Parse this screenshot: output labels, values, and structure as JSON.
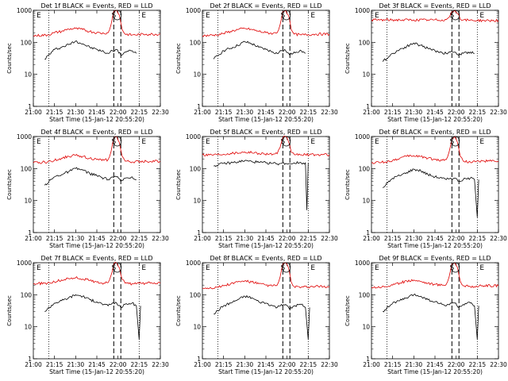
{
  "figure": {
    "background": "#ffffff",
    "axis_color": "#000000",
    "events_color": "#000000",
    "lld_color": "#e00000"
  },
  "shared": {
    "xlabel": "Start Time (15-Jan-12 20:55:20)",
    "ylabel": "Counts/sec",
    "x_tick_labels": [
      "21:00",
      "21:15",
      "21:30",
      "21:45",
      "22:00",
      "22:15",
      "22:30"
    ],
    "y_tick_labels": [
      "1",
      "10",
      "100",
      "1000"
    ],
    "marker_labels": [
      "E",
      "S",
      "E"
    ]
  },
  "chart_data": [
    {
      "type": "line",
      "title": "Det 1f BLACK = Events, RED = LLD",
      "xlim": [
        "21:00",
        "22:30"
      ],
      "ylim": [
        1,
        1000
      ],
      "yscale": "log",
      "grid": false,
      "dotted_lines_x": [
        "21:11",
        "22:15"
      ],
      "dashed_lines_x": [
        "21:57",
        "22:02"
      ],
      "series": [
        {
          "name": "Events",
          "x": [
            "21:08",
            "21:15",
            "21:20",
            "21:25",
            "21:30",
            "21:35",
            "21:40",
            "21:45",
            "21:50",
            "21:53",
            "21:56",
            "21:59",
            "22:02",
            "22:05",
            "22:10",
            "22:13"
          ],
          "y": [
            30,
            60,
            70,
            85,
            110,
            90,
            70,
            60,
            50,
            45,
            55,
            60,
            40,
            50,
            55,
            45
          ]
        },
        {
          "name": "LLD",
          "x": [
            "21:00",
            "21:10",
            "21:15",
            "21:20",
            "21:25",
            "21:30",
            "21:35",
            "21:40",
            "21:45",
            "21:50",
            "21:53",
            "21:55",
            "21:57",
            "21:59",
            "22:01",
            "22:03",
            "22:05",
            "22:10",
            "22:20",
            "22:30"
          ],
          "y": [
            160,
            170,
            200,
            220,
            260,
            270,
            250,
            220,
            200,
            190,
            200,
            350,
            900,
            1000,
            700,
            250,
            180,
            170,
            180,
            180
          ]
        }
      ]
    },
    {
      "type": "line",
      "title": "Det 2f BLACK = Events, RED = LLD",
      "xlim": [
        "21:00",
        "22:30"
      ],
      "ylim": [
        1,
        1000
      ],
      "yscale": "log",
      "grid": false,
      "dotted_lines_x": [
        "21:11",
        "22:15"
      ],
      "dashed_lines_x": [
        "21:57",
        "22:02"
      ],
      "series": [
        {
          "name": "Events",
          "x": [
            "21:08",
            "21:15",
            "21:20",
            "21:25",
            "21:30",
            "21:35",
            "21:40",
            "21:45",
            "21:50",
            "21:53",
            "21:56",
            "21:59",
            "22:02",
            "22:05",
            "22:10",
            "22:13"
          ],
          "y": [
            30,
            55,
            65,
            80,
            105,
            90,
            70,
            60,
            50,
            45,
            55,
            55,
            40,
            50,
            55,
            45
          ]
        },
        {
          "name": "LLD",
          "x": [
            "21:00",
            "21:10",
            "21:15",
            "21:20",
            "21:25",
            "21:30",
            "21:35",
            "21:40",
            "21:45",
            "21:50",
            "21:53",
            "21:55",
            "21:57",
            "21:59",
            "22:01",
            "22:03",
            "22:05",
            "22:10",
            "22:20",
            "22:30"
          ],
          "y": [
            160,
            170,
            190,
            220,
            250,
            270,
            250,
            220,
            200,
            190,
            200,
            350,
            900,
            1000,
            700,
            250,
            180,
            170,
            180,
            180
          ]
        }
      ]
    },
    {
      "type": "line",
      "title": "Det 3f BLACK = Events, RED = LLD",
      "xlim": [
        "21:00",
        "22:30"
      ],
      "ylim": [
        1,
        1000
      ],
      "yscale": "log",
      "grid": false,
      "dotted_lines_x": [
        "21:11",
        "22:15"
      ],
      "dashed_lines_x": [
        "21:57",
        "22:02"
      ],
      "series": [
        {
          "name": "Events",
          "x": [
            "21:08",
            "21:15",
            "21:20",
            "21:25",
            "21:30",
            "21:35",
            "21:40",
            "21:45",
            "21:50",
            "21:53",
            "21:56",
            "21:59",
            "22:02",
            "22:05",
            "22:10",
            "22:13"
          ],
          "y": [
            25,
            45,
            60,
            75,
            95,
            80,
            65,
            55,
            48,
            45,
            50,
            50,
            40,
            45,
            50,
            45
          ]
        },
        {
          "name": "LLD",
          "x": [
            "21:00",
            "21:10",
            "21:20",
            "21:30",
            "21:40",
            "21:50",
            "21:53",
            "21:55",
            "21:57",
            "21:59",
            "22:01",
            "22:03",
            "22:05",
            "22:10",
            "22:20",
            "22:30"
          ],
          "y": [
            500,
            500,
            500,
            500,
            500,
            500,
            510,
            600,
            900,
            1000,
            800,
            520,
            500,
            490,
            480,
            480
          ]
        }
      ]
    },
    {
      "type": "line",
      "title": "Det 4f BLACK = Events, RED = LLD",
      "xlim": [
        "21:00",
        "22:30"
      ],
      "ylim": [
        1,
        1000
      ],
      "yscale": "log",
      "grid": false,
      "dotted_lines_x": [
        "21:11",
        "22:15"
      ],
      "dashed_lines_x": [
        "21:57",
        "22:02"
      ],
      "series": [
        {
          "name": "Events",
          "x": [
            "21:08",
            "21:15",
            "21:20",
            "21:25",
            "21:30",
            "21:35",
            "21:40",
            "21:45",
            "21:50",
            "21:53",
            "21:56",
            "21:59",
            "22:02",
            "22:05",
            "22:10",
            "22:13"
          ],
          "y": [
            30,
            55,
            65,
            80,
            100,
            90,
            70,
            60,
            50,
            45,
            55,
            55,
            40,
            50,
            55,
            45
          ]
        },
        {
          "name": "LLD",
          "x": [
            "21:00",
            "21:10",
            "21:15",
            "21:20",
            "21:25",
            "21:30",
            "21:35",
            "21:40",
            "21:45",
            "21:50",
            "21:53",
            "21:55",
            "21:57",
            "21:59",
            "22:01",
            "22:03",
            "22:05",
            "22:10",
            "22:20",
            "22:30"
          ],
          "y": [
            150,
            160,
            180,
            210,
            240,
            260,
            240,
            210,
            190,
            180,
            190,
            330,
            850,
            1000,
            650,
            240,
            170,
            160,
            170,
            170
          ]
        }
      ]
    },
    {
      "type": "line",
      "title": "Det 5f BLACK = Events, RED = LLD",
      "xlim": [
        "21:00",
        "22:30"
      ],
      "ylim": [
        1,
        1000
      ],
      "yscale": "log",
      "grid": false,
      "dotted_lines_x": [
        "21:11",
        "22:15"
      ],
      "dashed_lines_x": [
        "21:57",
        "22:02"
      ],
      "series": [
        {
          "name": "Events",
          "x": [
            "21:08",
            "21:15",
            "21:20",
            "21:25",
            "21:30",
            "21:35",
            "21:40",
            "21:45",
            "21:50",
            "21:53",
            "21:56",
            "21:59",
            "22:02",
            "22:05",
            "22:10",
            "22:13",
            "22:14",
            "22:15"
          ],
          "y": [
            120,
            145,
            150,
            160,
            175,
            165,
            155,
            150,
            145,
            140,
            145,
            145,
            140,
            150,
            150,
            150,
            5,
            150
          ]
        },
        {
          "name": "LLD",
          "x": [
            "21:00",
            "21:10",
            "21:20",
            "21:30",
            "21:40",
            "21:50",
            "21:53",
            "21:55",
            "21:57",
            "21:59",
            "22:01",
            "22:03",
            "22:05",
            "22:10",
            "22:20",
            "22:30"
          ],
          "y": [
            270,
            275,
            300,
            330,
            300,
            280,
            290,
            450,
            900,
            1000,
            700,
            320,
            280,
            270,
            270,
            270
          ]
        }
      ]
    },
    {
      "type": "line",
      "title": "Det 6f BLACK = Events, RED = LLD",
      "xlim": [
        "21:00",
        "22:30"
      ],
      "ylim": [
        1,
        1000
      ],
      "yscale": "log",
      "grid": false,
      "dotted_lines_x": [
        "21:11",
        "22:15"
      ],
      "dashed_lines_x": [
        "21:57",
        "22:02"
      ],
      "series": [
        {
          "name": "Events",
          "x": [
            "21:08",
            "21:15",
            "21:20",
            "21:25",
            "21:30",
            "21:35",
            "21:40",
            "21:45",
            "21:50",
            "21:53",
            "21:56",
            "21:59",
            "22:02",
            "22:05",
            "22:10",
            "22:13",
            "22:15",
            "22:16"
          ],
          "y": [
            25,
            50,
            60,
            75,
            95,
            85,
            65,
            55,
            50,
            45,
            50,
            50,
            40,
            45,
            50,
            45,
            3,
            45
          ]
        },
        {
          "name": "LLD",
          "x": [
            "21:00",
            "21:10",
            "21:15",
            "21:20",
            "21:25",
            "21:30",
            "21:35",
            "21:40",
            "21:45",
            "21:50",
            "21:53",
            "21:55",
            "21:57",
            "21:59",
            "22:01",
            "22:03",
            "22:05",
            "22:10",
            "22:20",
            "22:30"
          ],
          "y": [
            150,
            160,
            180,
            210,
            240,
            250,
            240,
            210,
            190,
            180,
            190,
            330,
            850,
            1000,
            650,
            240,
            170,
            160,
            170,
            170
          ]
        }
      ]
    },
    {
      "type": "line",
      "title": "Det 7f BLACK = Events, RED = LLD",
      "xlim": [
        "21:00",
        "22:30"
      ],
      "ylim": [
        1,
        1000
      ],
      "yscale": "log",
      "grid": false,
      "dotted_lines_x": [
        "21:11",
        "22:15"
      ],
      "dashed_lines_x": [
        "21:57",
        "22:02"
      ],
      "series": [
        {
          "name": "Events",
          "x": [
            "21:08",
            "21:15",
            "21:20",
            "21:25",
            "21:30",
            "21:35",
            "21:40",
            "21:45",
            "21:50",
            "21:53",
            "21:56",
            "21:59",
            "22:02",
            "22:05",
            "22:10",
            "22:13",
            "22:15",
            "22:16"
          ],
          "y": [
            30,
            55,
            65,
            80,
            100,
            90,
            70,
            60,
            50,
            45,
            55,
            55,
            40,
            50,
            55,
            45,
            4,
            45
          ]
        },
        {
          "name": "LLD",
          "x": [
            "21:00",
            "21:10",
            "21:15",
            "21:20",
            "21:25",
            "21:30",
            "21:35",
            "21:40",
            "21:45",
            "21:50",
            "21:53",
            "21:55",
            "21:57",
            "21:59",
            "22:01",
            "22:03",
            "22:05",
            "22:10",
            "22:20",
            "22:30"
          ],
          "y": [
            220,
            230,
            250,
            290,
            320,
            340,
            310,
            280,
            250,
            230,
            240,
            400,
            900,
            1000,
            700,
            300,
            230,
            220,
            230,
            230
          ]
        }
      ]
    },
    {
      "type": "line",
      "title": "Det 8f BLACK = Events, RED = LLD",
      "xlim": [
        "21:00",
        "22:30"
      ],
      "ylim": [
        1,
        1000
      ],
      "yscale": "log",
      "grid": false,
      "dotted_lines_x": [
        "21:11",
        "22:15"
      ],
      "dashed_lines_x": [
        "21:57",
        "22:02"
      ],
      "series": [
        {
          "name": "Events",
          "x": [
            "21:08",
            "21:15",
            "21:20",
            "21:25",
            "21:30",
            "21:35",
            "21:40",
            "21:45",
            "21:50",
            "21:53",
            "21:56",
            "21:59",
            "22:02",
            "22:05",
            "22:10",
            "22:13",
            "22:15",
            "22:16"
          ],
          "y": [
            25,
            45,
            55,
            70,
            90,
            80,
            60,
            55,
            45,
            40,
            50,
            50,
            35,
            45,
            50,
            40,
            4,
            40
          ]
        },
        {
          "name": "LLD",
          "x": [
            "21:00",
            "21:10",
            "21:15",
            "21:20",
            "21:25",
            "21:30",
            "21:35",
            "21:40",
            "21:45",
            "21:50",
            "21:53",
            "21:55",
            "21:57",
            "21:59",
            "22:01",
            "22:03",
            "22:05",
            "22:10",
            "22:20",
            "22:30"
          ],
          "y": [
            160,
            170,
            190,
            220,
            250,
            270,
            250,
            220,
            200,
            190,
            200,
            350,
            900,
            1000,
            700,
            250,
            180,
            170,
            180,
            180
          ]
        }
      ]
    },
    {
      "type": "line",
      "title": "Det 9f BLACK = Events, RED = LLD",
      "xlim": [
        "21:00",
        "22:30"
      ],
      "ylim": [
        1,
        1000
      ],
      "yscale": "log",
      "grid": false,
      "dotted_lines_x": [
        "21:11",
        "22:15"
      ],
      "dashed_lines_x": [
        "21:57",
        "22:02"
      ],
      "series": [
        {
          "name": "Events",
          "x": [
            "21:08",
            "21:15",
            "21:20",
            "21:25",
            "21:30",
            "21:35",
            "21:40",
            "21:45",
            "21:50",
            "21:53",
            "21:56",
            "21:59",
            "22:02",
            "22:05",
            "22:10",
            "22:13",
            "22:15",
            "22:16"
          ],
          "y": [
            30,
            55,
            65,
            80,
            100,
            90,
            70,
            60,
            50,
            45,
            55,
            55,
            40,
            50,
            55,
            45,
            4,
            45
          ]
        },
        {
          "name": "LLD",
          "x": [
            "21:00",
            "21:10",
            "21:15",
            "21:20",
            "21:25",
            "21:30",
            "21:35",
            "21:40",
            "21:45",
            "21:50",
            "21:53",
            "21:55",
            "21:57",
            "21:59",
            "22:01",
            "22:03",
            "22:05",
            "22:10",
            "22:20",
            "22:30"
          ],
          "y": [
            170,
            180,
            200,
            230,
            270,
            290,
            260,
            230,
            210,
            200,
            210,
            360,
            900,
            1000,
            700,
            260,
            190,
            180,
            190,
            190
          ]
        }
      ]
    }
  ]
}
